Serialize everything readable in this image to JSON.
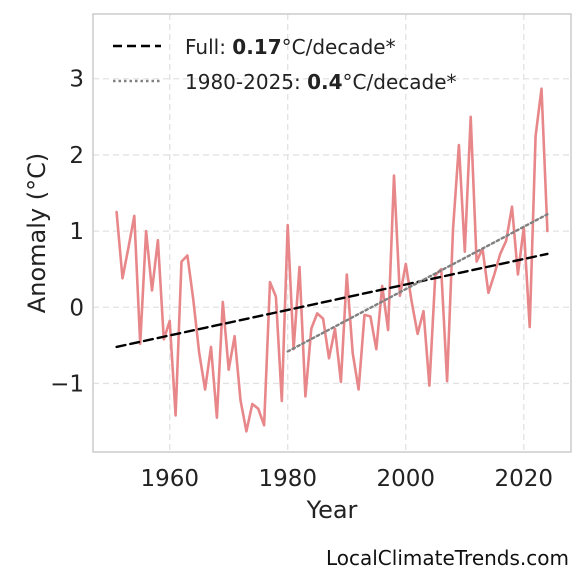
{
  "chart_data": {
    "type": "line",
    "xlabel": "Year",
    "ylabel": "Anomaly (°C)",
    "xlim": [
      1947,
      2028
    ],
    "ylim": [
      -1.9,
      3.85
    ],
    "xticks": [
      1960,
      1980,
      2000,
      2020
    ],
    "yticks": [
      -1,
      0,
      1,
      2,
      3
    ],
    "ytick_labels": [
      "−1",
      "0",
      "1",
      "2",
      "3"
    ],
    "grid": true,
    "legend_position": "top-left",
    "series": [
      {
        "color": "#e8878a",
        "style": "solid",
        "x": [
          1951,
          1952,
          1953,
          1954,
          1955,
          1956,
          1957,
          1958,
          1959,
          1960,
          1961,
          1962,
          1963,
          1964,
          1965,
          1966,
          1967,
          1968,
          1969,
          1970,
          1971,
          1972,
          1973,
          1974,
          1975,
          1976,
          1977,
          1978,
          1979,
          1980,
          1981,
          1982,
          1983,
          1984,
          1985,
          1986,
          1987,
          1988,
          1989,
          1990,
          1991,
          1992,
          1993,
          1994,
          1995,
          1996,
          1997,
          1998,
          1999,
          2000,
          2001,
          2002,
          2003,
          2004,
          2005,
          2006,
          2007,
          2008,
          2009,
          2010,
          2011,
          2012,
          2013,
          2014,
          2015,
          2016,
          2017,
          2018,
          2019,
          2020,
          2021,
          2022,
          2023,
          2024
        ],
        "y": [
          1.25,
          0.38,
          0.78,
          1.2,
          -0.48,
          1.0,
          0.22,
          0.88,
          -0.42,
          -0.18,
          -1.42,
          0.6,
          0.68,
          0.1,
          -0.6,
          -1.08,
          -0.52,
          -1.45,
          0.07,
          -0.82,
          -0.38,
          -1.22,
          -1.63,
          -1.27,
          -1.33,
          -1.55,
          0.33,
          0.14,
          -1.23,
          1.08,
          -0.55,
          0.53,
          -1.17,
          -0.28,
          -0.08,
          -0.15,
          -0.67,
          -0.28,
          -0.98,
          0.43,
          -0.6,
          -1.08,
          -0.1,
          -0.12,
          -0.55,
          0.28,
          -0.3,
          1.73,
          0.15,
          0.57,
          0.07,
          -0.35,
          -0.05,
          -1.03,
          0.42,
          0.5,
          -0.97,
          1.02,
          2.13,
          0.73,
          2.5,
          0.6,
          0.77,
          0.19,
          0.43,
          0.7,
          0.87,
          1.32,
          0.43,
          1.05,
          -0.26,
          2.25,
          2.87,
          1.0
        ]
      },
      {
        "color": "#000000",
        "style": "dashed",
        "x": [
          1951,
          2024
        ],
        "y": [
          -0.52,
          0.7
        ]
      },
      {
        "color": "#808080",
        "style": "dotted",
        "x": [
          1980,
          2024
        ],
        "y": [
          -0.58,
          1.22
        ]
      }
    ],
    "legend": [
      {
        "prefix": "Full: ",
        "bold": "0.17",
        "suffix": "°C/decade*",
        "style": "dashed",
        "color": "#000000"
      },
      {
        "prefix": "1980-2025: ",
        "bold": "0.4",
        "suffix": "°C/decade*",
        "style": "dotted",
        "color": "#808080"
      }
    ]
  },
  "watermark": "LocalClimateTrends.com"
}
